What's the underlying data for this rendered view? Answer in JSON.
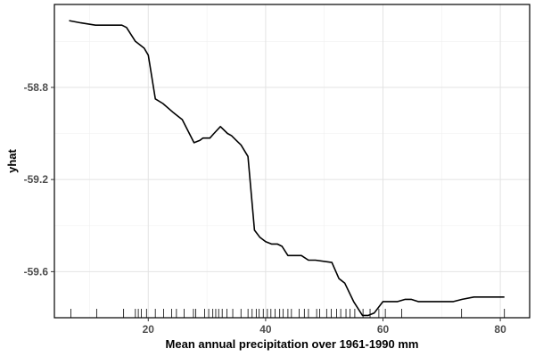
{
  "chart_data": {
    "type": "line",
    "xlabel": "Mean annual precipitation over 1961-1990 mm",
    "ylabel": "yhat",
    "xlim": [
      4,
      85
    ],
    "ylim": [
      -59.8,
      -58.44
    ],
    "x_ticks": [
      20,
      40,
      60,
      80
    ],
    "x_tick_labels": [
      "20",
      "40",
      "60",
      "80"
    ],
    "y_ticks": [
      -58.8,
      -59.2,
      -59.6
    ],
    "y_tick_labels": [
      "-58.8",
      "-59.2",
      -59.6
    ],
    "grid": true,
    "line_color": "#000000",
    "series": [
      {
        "x": [
          6.5,
          8.5,
          11,
          14,
          15.5,
          16.3,
          17.8,
          19.3,
          20,
          21.2,
          22.5,
          24.3,
          25.8,
          27.8,
          28.8,
          29.3,
          30.5,
          31.2,
          32.3,
          33.5,
          34.2,
          35,
          35.8,
          37,
          38.1,
          39,
          40,
          41,
          42,
          42.8,
          43.8,
          44.8,
          46.1,
          47.3,
          48.5,
          51.3,
          52.5,
          53.5,
          55,
          56.5,
          57.5,
          58.5,
          60,
          62.5,
          63.8,
          64.8,
          66,
          69,
          70.5,
          72,
          73.5,
          75.5,
          80.7
        ],
        "y": [
          -58.51,
          -58.52,
          -58.53,
          -58.53,
          -58.53,
          -58.54,
          -58.6,
          -58.63,
          -58.66,
          -58.85,
          -58.87,
          -58.91,
          -58.94,
          -59.04,
          -59.03,
          -59.02,
          -59.02,
          -59.0,
          -58.97,
          -59.0,
          -59.01,
          -59.03,
          -59.05,
          -59.1,
          -59.42,
          -59.45,
          -59.47,
          -59.48,
          -59.48,
          -59.49,
          -59.53,
          -59.53,
          -59.53,
          -59.55,
          -59.55,
          -59.56,
          -59.63,
          -59.65,
          -59.73,
          -59.79,
          -59.79,
          -59.78,
          -59.73,
          -59.73,
          -59.72,
          -59.72,
          -59.73,
          -59.73,
          -59.73,
          -59.73,
          -59.72,
          -59.71,
          -59.71
        ]
      }
    ],
    "rug_x": [
      6.8,
      11.2,
      15.8,
      17.8,
      18.3,
      18.8,
      19.7,
      21.2,
      22.6,
      24,
      24.8,
      26.1,
      27.7,
      28.1,
      29.6,
      30.3,
      31,
      31.5,
      32,
      32.6,
      33.4,
      34.4,
      35.8,
      37,
      37.7,
      38.4,
      38.9,
      39.6,
      40.3,
      40.9,
      41.6,
      42.4,
      43,
      43.8,
      44.4,
      45.7,
      46.6,
      47.3,
      48.7,
      49.2,
      50.4,
      51.2,
      52.1,
      52.8,
      53.7,
      54.4,
      55.2,
      56.6,
      57.8,
      59.3,
      60.4,
      63.2,
      73.4,
      80.7
    ]
  }
}
